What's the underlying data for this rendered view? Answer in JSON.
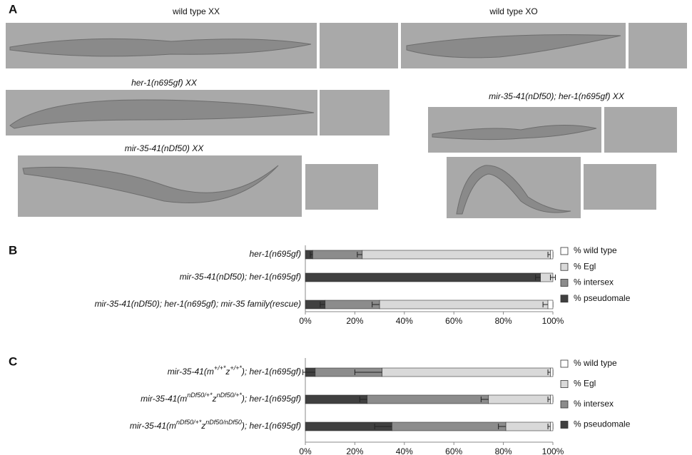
{
  "panels": [
    "A",
    "B",
    "C"
  ],
  "micrographs": [
    {
      "label": "wild type XX",
      "italic": false
    },
    {
      "label": "wild type XO",
      "italic": false
    },
    {
      "label": "her-1(n695gf) XX",
      "italic": true
    },
    {
      "label": "mir-35-41(nDf50) XX",
      "italic": true
    },
    {
      "label": "mir-35-41(nDf50); her-1(n695gf) XX",
      "italic": true
    }
  ],
  "chart_data": [
    {
      "type": "stacked-barh",
      "categories": [
        [
          "her-1(n695gf)"
        ],
        [
          "mir-35-41(nDf50); her-1(n695gf)"
        ],
        [
          "mir-35-41(nDf50); her-1(n695gf); mir-35 family(rescue)"
        ]
      ],
      "series": [
        {
          "name": "% pseudomale",
          "color": "#404040",
          "values": [
            3,
            95,
            8
          ],
          "errors": [
            1,
            2,
            2
          ]
        },
        {
          "name": "% intersex",
          "color": "#8c8c8c",
          "values": [
            20,
            0,
            22
          ],
          "errors": [
            2,
            null,
            3
          ]
        },
        {
          "name": "% Egl",
          "color": "#d9d9d9",
          "values": [
            76,
            5,
            68
          ],
          "errors": [
            1,
            1,
            2
          ]
        },
        {
          "name": "% wild type",
          "color": "#ffffff",
          "values": [
            1,
            0,
            2
          ],
          "errors": [
            null,
            null,
            null
          ]
        }
      ],
      "xlim": [
        0,
        100
      ],
      "xticks": [
        {
          "value": 0,
          "label": "0%"
        },
        {
          "value": 20,
          "label": "20%"
        },
        {
          "value": 40,
          "label": "40%"
        },
        {
          "value": 60,
          "label": "60%"
        },
        {
          "value": 80,
          "label": "80%"
        },
        {
          "value": 100,
          "label": "100%"
        }
      ]
    },
    {
      "type": "stacked-barh",
      "categories": [
        [
          "mir-35-41(m",
          "+/+*",
          "z",
          "+/+*",
          "); her-1(n695gf)"
        ],
        [
          "mir-35-41(m",
          "nDf50/+*",
          "z",
          "nDf50/+*",
          "); her-1(n695gf)"
        ],
        [
          "mir-35-41(m",
          "nDf50/+*",
          "z",
          "nDf50/nDf50",
          "); her-1(n695gf)"
        ]
      ],
      "series": [
        {
          "name": "% pseudomale",
          "color": "#404040",
          "values": [
            4,
            25,
            35
          ],
          "errors": [
            5,
            3,
            7
          ]
        },
        {
          "name": "% intersex",
          "color": "#8c8c8c",
          "values": [
            27,
            49,
            46
          ],
          "errors": [
            11,
            3,
            3
          ]
        },
        {
          "name": "% Egl",
          "color": "#d9d9d9",
          "values": [
            68,
            25,
            18
          ],
          "errors": [
            1,
            1,
            1
          ]
        },
        {
          "name": "% wild type",
          "color": "#ffffff",
          "values": [
            1,
            1,
            1
          ],
          "errors": [
            null,
            null,
            null
          ]
        }
      ],
      "xlim": [
        0,
        100
      ],
      "xticks": [
        {
          "value": 0,
          "label": "0%"
        },
        {
          "value": 20,
          "label": "20%"
        },
        {
          "value": 40,
          "label": "40%"
        },
        {
          "value": 60,
          "label": "60%"
        },
        {
          "value": 80,
          "label": "80%"
        },
        {
          "value": 100,
          "label": "100%"
        }
      ]
    }
  ]
}
